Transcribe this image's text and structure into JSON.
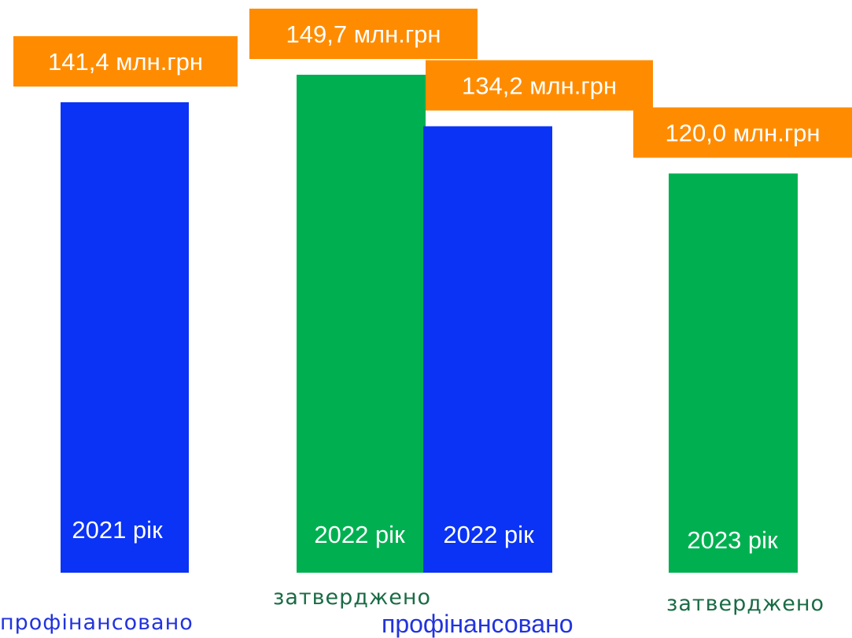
{
  "chart_data": {
    "type": "bar",
    "title": "",
    "xlabel": "",
    "ylabel": "",
    "unit": "млн.грн",
    "bars": [
      {
        "id": "b2021",
        "year_label": "2021 рік",
        "status": "профінансовано",
        "value": 141.4,
        "value_label": "141,4 млн.грн",
        "color": "#0a33f5"
      },
      {
        "id": "b2022a",
        "year_label": "2022 рік",
        "status": "затверджено",
        "value": 149.7,
        "value_label": "149,7 млн.грн",
        "color": "#00b050"
      },
      {
        "id": "b2022f",
        "year_label": "2022 рік",
        "status": "профінансовано",
        "value": 134.2,
        "value_label": "134,2 млн.грн",
        "color": "#0a33f5"
      },
      {
        "id": "b2023",
        "year_label": "2023 рік",
        "status": "затверджено",
        "value": 120.0,
        "value_label": "120,0 млн.грн",
        "color": "#00b050"
      }
    ],
    "label_box_color": "#ff8c00",
    "status_colors": {
      "профінансовано": "#2233dd",
      "затверджено": "#1a6b45"
    },
    "grid": false,
    "legend": "none"
  }
}
